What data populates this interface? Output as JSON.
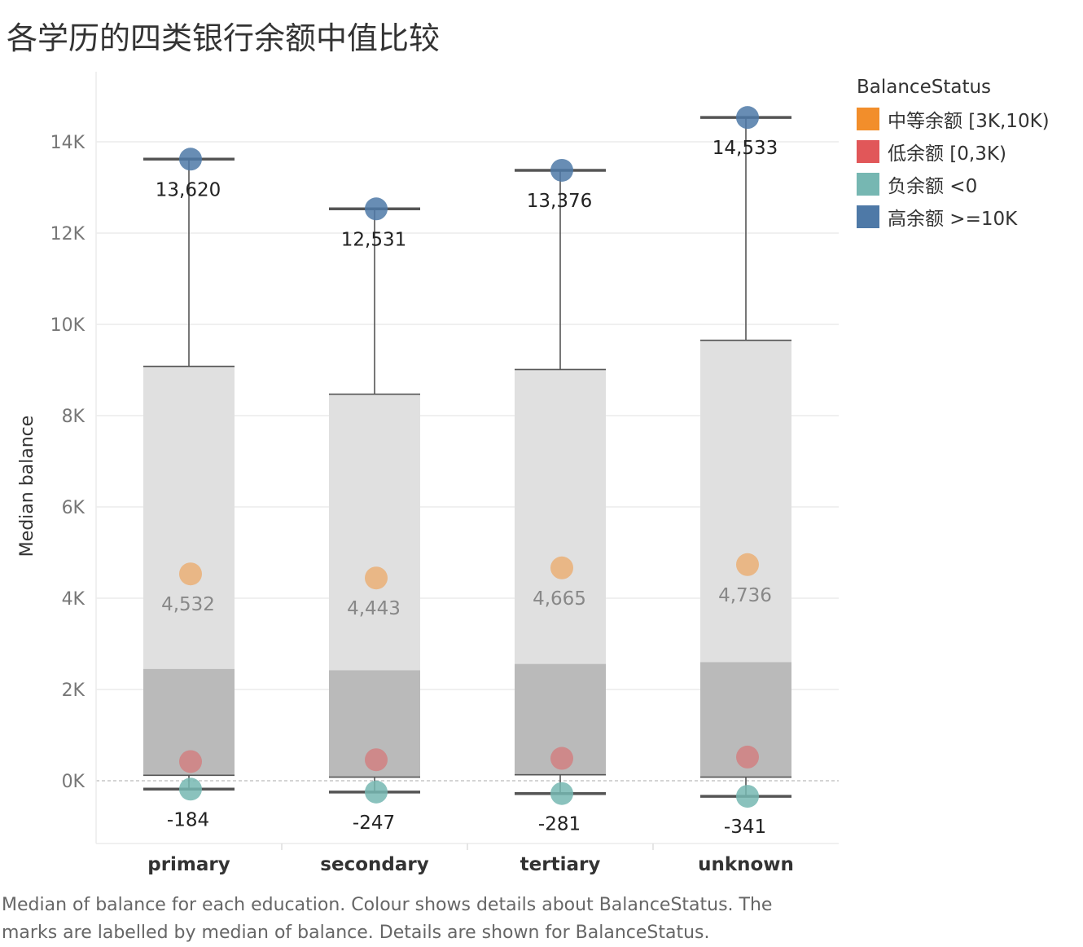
{
  "title": "各学历的四类银行余额中值比较",
  "caption": "Median of balance for each education.  Colour shows details about BalanceStatus.  The marks are labelled by median of balance.  Details are shown for BalanceStatus.",
  "legend": {
    "title": "BalanceStatus",
    "items": [
      {
        "label": "中等余额 [3K,10K)",
        "color": "#f28e2b"
      },
      {
        "label": "低余额 [0,3K)",
        "color": "#e15759"
      },
      {
        "label": "负余额 <0",
        "color": "#76b7b2"
      },
      {
        "label": "高余额 >=10K",
        "color": "#4e79a7"
      }
    ]
  },
  "chart_data": {
    "type": "scatter",
    "overlay": "box-plot",
    "ylabel": "Median balance",
    "xlabel": "",
    "ylim": [
      -1350,
      15500
    ],
    "y_ticks": [
      0,
      2000,
      4000,
      6000,
      8000,
      10000,
      12000,
      14000
    ],
    "y_tick_labels": [
      "0K",
      "2K",
      "4K",
      "6K",
      "8K",
      "10K",
      "12K",
      "14K"
    ],
    "grid": true,
    "legend_position": "right",
    "categories": [
      "primary",
      "secondary",
      "tertiary",
      "unknown"
    ],
    "series": [
      {
        "name": "高余额 >=10K",
        "color": "#4e79a7",
        "values": [
          13620,
          12531,
          13376,
          14533
        ],
        "labels": [
          "13,620",
          "12,531",
          "13,376",
          "14,533"
        ]
      },
      {
        "name": "中等余额 [3K,10K)",
        "color": "#f28e2b",
        "values": [
          4532,
          4443,
          4665,
          4736
        ],
        "labels": [
          "4,532",
          "4,443",
          "4,665",
          "4,736"
        ]
      },
      {
        "name": "低余额 [0,3K)",
        "color": "#e15759",
        "values": [
          420,
          460,
          490,
          520
        ],
        "labels": []
      },
      {
        "name": "负余额 <0",
        "color": "#76b7b2",
        "values": [
          -184,
          -247,
          -281,
          -341
        ],
        "labels": [
          "-184",
          "-247",
          "-281",
          "-341"
        ]
      }
    ],
    "boxes": [
      {
        "category": "primary",
        "whisker_low": -184,
        "q1": 120,
        "median": 2450,
        "q3": 9080,
        "whisker_high": 13620
      },
      {
        "category": "secondary",
        "whisker_low": -247,
        "q1": 80,
        "median": 2420,
        "q3": 8470,
        "whisker_high": 12531
      },
      {
        "category": "tertiary",
        "whisker_low": -281,
        "q1": 130,
        "median": 2560,
        "q3": 9010,
        "whisker_high": 13376
      },
      {
        "category": "unknown",
        "whisker_low": -341,
        "q1": 80,
        "median": 2600,
        "q3": 9650,
        "whisker_high": 14533
      }
    ]
  }
}
